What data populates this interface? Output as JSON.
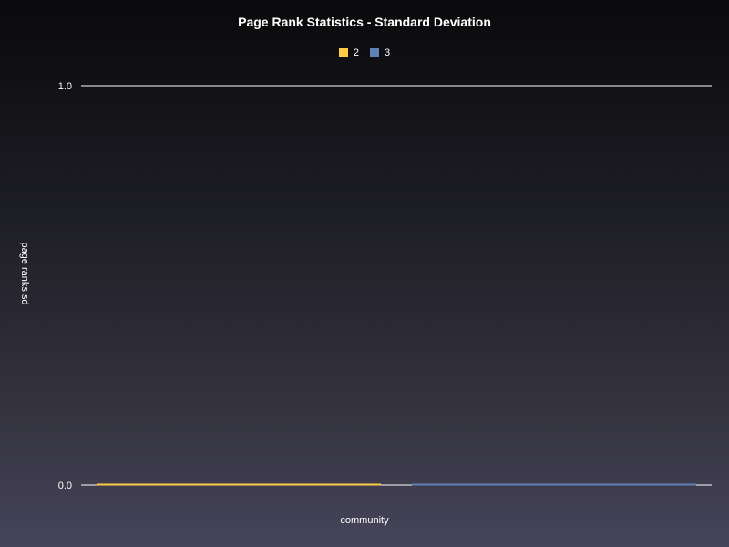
{
  "chart_data": {
    "type": "bar",
    "title": "Page Rank Statistics - Standard Deviation",
    "xlabel": "community",
    "ylabel": "page ranks sd",
    "ylim": [
      0.0,
      1.0
    ],
    "yticks": [
      "0.0",
      "1.0"
    ],
    "legend_position": "top-center",
    "series": [
      {
        "name": "2",
        "value": 0.0,
        "color": "#ffcc44"
      },
      {
        "name": "3",
        "value": 0.0,
        "color": "#5f82b6"
      }
    ]
  }
}
